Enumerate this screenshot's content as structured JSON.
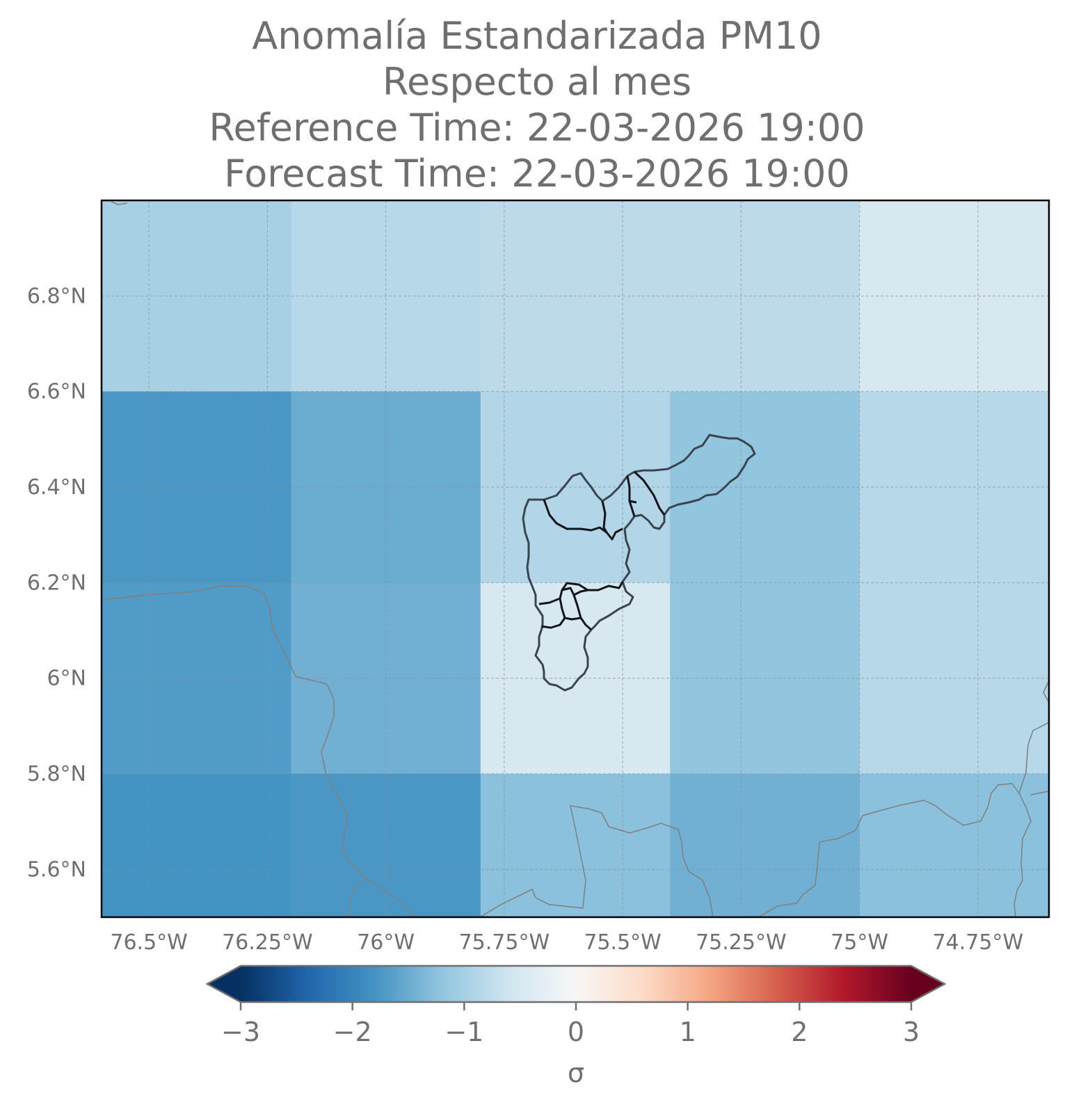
{
  "title": {
    "line1": "Anomalía Estandarizada PM10",
    "line2": "Respecto al mes",
    "line3": "Reference Time: 22-03-2026 19:00",
    "line4": "Forecast Time: 22-03-2026 19:00"
  },
  "chart_data": {
    "type": "heatmap",
    "title": "Anomalía Estandarizada PM10 / Respecto al mes",
    "x_axis": {
      "unit": "longitude",
      "range": [
        -76.6,
        -74.6
      ],
      "ticks": [
        -76.5,
        -76.25,
        -76.0,
        -75.75,
        -75.5,
        -75.25,
        -75.0,
        -74.75
      ],
      "tick_labels": [
        "76.5°W",
        "76.25°W",
        "76°W",
        "75.75°W",
        "75.5°W",
        "75.25°W",
        "75°W",
        "74.75°W"
      ]
    },
    "y_axis": {
      "unit": "latitude",
      "range": [
        5.5,
        7.0
      ],
      "ticks": [
        5.6,
        5.8,
        6.0,
        6.2,
        6.4,
        6.6,
        6.8
      ],
      "tick_labels": [
        "5.6°N",
        "5.8°N",
        "6°N",
        "6.2°N",
        "6.4°N",
        "6.6°N",
        "6.8°N"
      ]
    },
    "grid": true,
    "cell_lon_edges": [
      -76.6,
      -76.2,
      -75.8,
      -75.4,
      -75.0,
      -74.6
    ],
    "cell_lat_edges": [
      7.0,
      6.6,
      6.2,
      5.8,
      5.5
    ],
    "values_rows_north_to_south": [
      [
        -1.0,
        -0.85,
        -0.8,
        -0.8,
        -0.5
      ],
      [
        -1.75,
        -1.5,
        -0.9,
        -1.2,
        -0.85
      ],
      [
        -1.7,
        -1.45,
        -0.5,
        -1.2,
        -0.85
      ],
      [
        -1.8,
        -1.75,
        -1.25,
        -1.45,
        -1.25
      ]
    ],
    "colorbar": {
      "label": "σ",
      "range": [
        -3,
        3
      ],
      "extend": "both",
      "ticks": [
        "−3",
        "−2",
        "−1",
        "0",
        "1",
        "2",
        "3"
      ],
      "colormap": "RdBu_r",
      "colors": [
        "#053061",
        "#2166ac",
        "#4393c3",
        "#92c5de",
        "#d1e5f0",
        "#f7f7f7",
        "#fddbc7",
        "#f4a582",
        "#d6604d",
        "#b2182b",
        "#67001f"
      ]
    }
  }
}
